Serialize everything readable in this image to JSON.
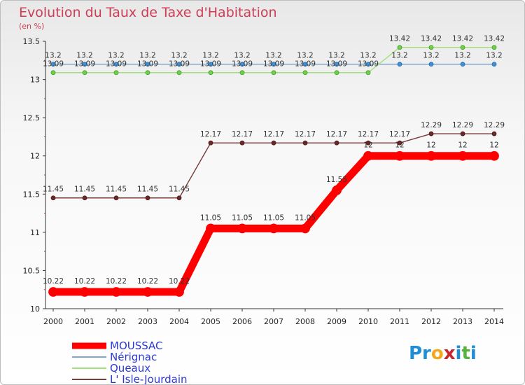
{
  "title": "Evolution du Taux de Taxe d'Habitation",
  "subtitle": "(en %)",
  "brand": {
    "parts": [
      "Pr",
      "o",
      "x",
      "i",
      "t",
      "i"
    ],
    "colors": [
      "#1f8ed6",
      "#f2a81d",
      "#c8262c",
      "#1f8ed6",
      "#57b23e",
      "#1f8ed6"
    ]
  },
  "chart_data": {
    "type": "line",
    "title": "Evolution du Taux de Taxe d'Habitation",
    "ylabel": "(en %)",
    "xlabel": "",
    "x": [
      2000,
      2001,
      2002,
      2003,
      2004,
      2005,
      2006,
      2007,
      2008,
      2009,
      2010,
      2011,
      2012,
      2013,
      2014
    ],
    "x_tick_labels": [
      "2000",
      "2001",
      "2002",
      "2003",
      "2004",
      "2005",
      "2006",
      "2007",
      "2008",
      "2009",
      "2010",
      "2011",
      "2012",
      "2013",
      "2014"
    ],
    "ylim": [
      10,
      13.5
    ],
    "y_ticks": [
      10,
      10.5,
      11,
      11.5,
      12,
      12.5,
      13,
      13.5
    ],
    "y_tick_labels": [
      "10",
      "10.5",
      "11",
      "11.5",
      "12",
      "12.5",
      "13",
      "13.5"
    ],
    "grid": false,
    "legend_position": "bottom-left",
    "series": [
      {
        "name": "MOUSSAC",
        "color": "#ff0000",
        "marker_fill": "#ff0000",
        "marker_stroke": "#ff0000",
        "emphasis": "thick",
        "legend_color": "#2a39d6",
        "values": [
          10.22,
          10.22,
          10.22,
          10.22,
          10.22,
          11.05,
          11.05,
          11.05,
          11.05,
          11.55,
          12,
          12,
          12,
          12,
          12
        ],
        "labels": [
          "10.22",
          "10.22",
          "10.22",
          "10.22",
          "10.22",
          "11.05",
          "11.05",
          "11.05",
          "11.05",
          "11.55",
          "12",
          "12",
          "12",
          "12",
          "12"
        ]
      },
      {
        "name": "Nérignac",
        "color": "#7fa7c9",
        "marker_fill": "#3f8fd6",
        "marker_stroke": "#2c6aa8",
        "emphasis": "thin",
        "legend_color": "#2a39d6",
        "values": [
          13.2,
          13.2,
          13.2,
          13.2,
          13.2,
          13.2,
          13.2,
          13.2,
          13.2,
          13.2,
          13.2,
          13.2,
          13.2,
          13.2,
          13.2
        ],
        "labels": [
          "13.2",
          "13.2",
          "13.2",
          "13.2",
          "13.2",
          "13.2",
          "13.2",
          "13.2",
          "13.2",
          "13.2",
          "13.2",
          "13.2",
          "13.2",
          "13.2",
          "13.2"
        ]
      },
      {
        "name": "Queaux",
        "color": "#9ee07a",
        "marker_fill": "#6fd04a",
        "marker_stroke": "#3f9a28",
        "emphasis": "thin",
        "legend_color": "#2a39d6",
        "values": [
          13.09,
          13.09,
          13.09,
          13.09,
          13.09,
          13.09,
          13.09,
          13.09,
          13.09,
          13.09,
          13.09,
          13.42,
          13.42,
          13.42,
          13.42
        ],
        "labels": [
          "13.09",
          "13.09",
          "13.09",
          "13.09",
          "13.09",
          "13.09",
          "13.09",
          "13.09",
          "13.09",
          "13.09",
          "13.09",
          "13.42",
          "13.42",
          "13.42",
          "13.42"
        ]
      },
      {
        "name": "L' Isle-Jourdain",
        "color": "#7a3b3b",
        "marker_fill": "#6b2a2a",
        "marker_stroke": "#4a1818",
        "emphasis": "thin",
        "legend_color": "#2a39d6",
        "values": [
          11.45,
          11.45,
          11.45,
          11.45,
          11.45,
          12.17,
          12.17,
          12.17,
          12.17,
          12.17,
          12.17,
          12.17,
          12.29,
          12.29,
          12.29
        ],
        "labels": [
          "11.45",
          "11.45",
          "11.45",
          "11.45",
          "11.45",
          "12.17",
          "12.17",
          "12.17",
          "12.17",
          "12.17",
          "12.17",
          "12.17",
          "12.29",
          "12.29",
          "12.29"
        ]
      }
    ]
  }
}
